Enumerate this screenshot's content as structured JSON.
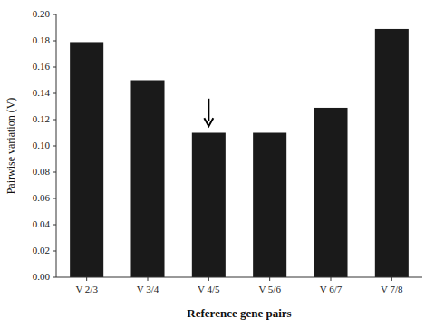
{
  "chart_data": {
    "type": "bar",
    "categories": [
      "V 2/3",
      "V 3/4",
      "V 4/5",
      "V 5/6",
      "V 6/7",
      "V 7/8"
    ],
    "values": [
      0.179,
      0.15,
      0.11,
      0.11,
      0.129,
      0.189
    ],
    "color": "#1a1a1a",
    "xlabel": "Reference gene pairs",
    "ylabel": "Pairwise variation (V)",
    "ylim": [
      0.0,
      0.2
    ],
    "yticks": [
      {
        "value": 0.0,
        "label": "0.00"
      },
      0.02,
      0.04,
      0.06,
      0.08,
      {
        "value": 0.1,
        "label": "0.10"
      },
      0.12,
      0.14,
      0.16,
      0.18,
      {
        "value": 0.2,
        "label": "0.20"
      }
    ],
    "grid": false,
    "arrow": {
      "category": "V 4/5",
      "from": 0.136,
      "to": 0.115
    }
  }
}
